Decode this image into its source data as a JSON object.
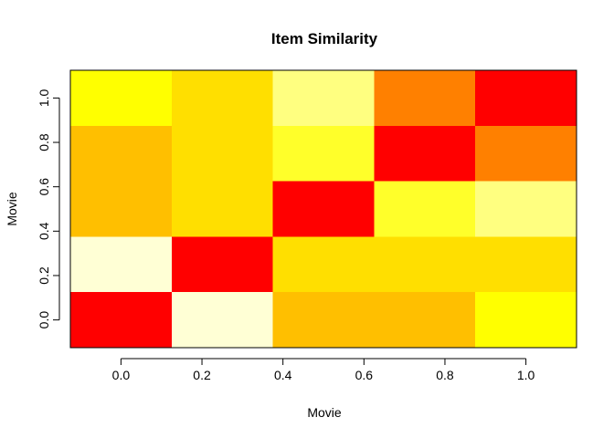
{
  "chart_data": {
    "type": "heatmap",
    "title": "Item Similarity",
    "xlabel": "Movie",
    "ylabel": "Movie",
    "x_ticks": [
      "0.0",
      "0.2",
      "0.4",
      "0.6",
      "0.8",
      "1.0"
    ],
    "y_ticks": [
      "0.0",
      "0.2",
      "0.4",
      "0.6",
      "0.8",
      "1.0"
    ],
    "x_tick_values": [
      0.0,
      0.2,
      0.4,
      0.6,
      0.8,
      1.0
    ],
    "y_tick_values": [
      0.0,
      0.2,
      0.4,
      0.6,
      0.8,
      1.0
    ],
    "xlim": [
      -0.125,
      1.125
    ],
    "ylim": [
      -0.125,
      1.125
    ],
    "grid": false,
    "palette": {
      "red": "#FF0000",
      "dark_orange": "#FF8000",
      "orange": "#FFBF00",
      "gold": "#FFDF00",
      "yellow": "#FFFF00",
      "light_yellow": "#FFFF2A",
      "pale_yellow": "#FFFF80",
      "cream": "#FFFFD5"
    },
    "cells": [
      {
        "x": 0.0,
        "y": 0.0,
        "color": "#FF0000"
      },
      {
        "x": 0.0,
        "y": 0.25,
        "color": "#FFFFD5"
      },
      {
        "x": 0.0,
        "y": 0.5,
        "color": "#FFBF00"
      },
      {
        "x": 0.0,
        "y": 0.75,
        "color": "#FFBF00"
      },
      {
        "x": 0.0,
        "y": 1.0,
        "color": "#FFFF00"
      },
      {
        "x": 0.25,
        "y": 0.0,
        "color": "#FFFFD5"
      },
      {
        "x": 0.25,
        "y": 0.25,
        "color": "#FF0000"
      },
      {
        "x": 0.25,
        "y": 0.5,
        "color": "#FFDF00"
      },
      {
        "x": 0.25,
        "y": 0.75,
        "color": "#FFDF00"
      },
      {
        "x": 0.25,
        "y": 1.0,
        "color": "#FFDF00"
      },
      {
        "x": 0.5,
        "y": 0.0,
        "color": "#FFBF00"
      },
      {
        "x": 0.5,
        "y": 0.25,
        "color": "#FFDF00"
      },
      {
        "x": 0.5,
        "y": 0.5,
        "color": "#FF0000"
      },
      {
        "x": 0.5,
        "y": 0.75,
        "color": "#FFFF2A"
      },
      {
        "x": 0.5,
        "y": 1.0,
        "color": "#FFFF80"
      },
      {
        "x": 0.75,
        "y": 0.0,
        "color": "#FFBF00"
      },
      {
        "x": 0.75,
        "y": 0.25,
        "color": "#FFDF00"
      },
      {
        "x": 0.75,
        "y": 0.5,
        "color": "#FFFF2A"
      },
      {
        "x": 0.75,
        "y": 0.75,
        "color": "#FF0000"
      },
      {
        "x": 0.75,
        "y": 1.0,
        "color": "#FF8000"
      },
      {
        "x": 1.0,
        "y": 0.0,
        "color": "#FFFF00"
      },
      {
        "x": 1.0,
        "y": 0.25,
        "color": "#FFDF00"
      },
      {
        "x": 1.0,
        "y": 0.5,
        "color": "#FFFF80"
      },
      {
        "x": 1.0,
        "y": 0.75,
        "color": "#FF8000"
      },
      {
        "x": 1.0,
        "y": 1.0,
        "color": "#FF0000"
      }
    ]
  }
}
